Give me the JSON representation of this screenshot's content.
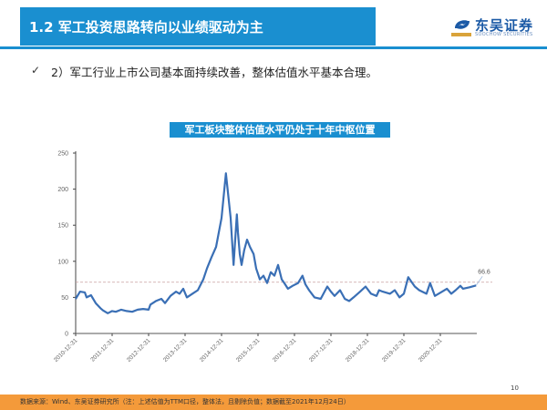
{
  "header": {
    "title": "1.2 军工投资思路转向以业绩驱动为主",
    "logo_cn": "东吴证券",
    "logo_en": "SOOCHOW SECURITIES"
  },
  "bullet": {
    "icon": "check-icon",
    "mark": "✓",
    "text": "2）军工行业上市公司基本面持续改善，整体估值水平基本合理。"
  },
  "chart_title": "军工板块整体估值水平仍处于十年中枢位置",
  "chart_data": {
    "type": "line",
    "title": "军工板块整体估值水平仍处于十年中枢位置",
    "xlabel": "",
    "ylabel": "",
    "ylim": [
      0,
      250
    ],
    "yticks": [
      0,
      50,
      100,
      150,
      200,
      250
    ],
    "xticks": [
      "2010-12-31",
      "2011-12-31",
      "2012-12-31",
      "2013-12-31",
      "2014-12-31",
      "2015-12-31",
      "2016-12-31",
      "2017-12-31",
      "2018-12-31",
      "2019-12-31",
      "2020-12-31"
    ],
    "grid": false,
    "legend": null,
    "reference_line": {
      "value": 71,
      "style": "dashed",
      "color": "#c9a0a0"
    },
    "end_label": "66.6",
    "series": [
      {
        "name": "军工板块整体估值(PE TTM)",
        "color": "#3a6fb5",
        "x": [
          0.0,
          0.12,
          0.25,
          0.3,
          0.42,
          0.55,
          0.68,
          0.75,
          0.88,
          1.0,
          1.1,
          1.25,
          1.4,
          1.55,
          1.7,
          1.85,
          2.0,
          2.05,
          2.2,
          2.35,
          2.45,
          2.6,
          2.75,
          2.85,
          2.95,
          3.05,
          3.2,
          3.35,
          3.5,
          3.6,
          3.72,
          3.85,
          4.0,
          4.12,
          4.25,
          4.33,
          4.42,
          4.45,
          4.5,
          4.55,
          4.62,
          4.7,
          4.78,
          4.88,
          4.95,
          5.05,
          5.15,
          5.25,
          5.35,
          5.45,
          5.55,
          5.65,
          5.72,
          5.82,
          5.95,
          6.1,
          6.22,
          6.3,
          6.4,
          6.55,
          6.72,
          6.9,
          7.0,
          7.1,
          7.25,
          7.38,
          7.5,
          7.62,
          7.8,
          7.95,
          8.1,
          8.25,
          8.32,
          8.42,
          8.62,
          8.75,
          8.88,
          9.0,
          9.12,
          9.3,
          9.42,
          9.62,
          9.72,
          9.85,
          10.05,
          10.18,
          10.3,
          10.42,
          10.55,
          10.62,
          10.8,
          10.98
        ],
        "values": [
          48,
          58,
          57,
          50,
          53,
          42,
          35,
          32,
          28,
          31,
          30,
          33,
          31,
          30,
          33,
          34,
          33,
          40,
          45,
          48,
          42,
          52,
          58,
          55,
          62,
          50,
          55,
          60,
          75,
          90,
          105,
          120,
          160,
          222,
          160,
          95,
          165,
          140,
          110,
          95,
          115,
          130,
          120,
          110,
          90,
          75,
          80,
          70,
          85,
          80,
          95,
          75,
          70,
          62,
          66,
          70,
          80,
          68,
          60,
          50,
          48,
          65,
          58,
          52,
          60,
          48,
          45,
          50,
          58,
          65,
          55,
          52,
          60,
          58,
          55,
          60,
          50,
          55,
          78,
          65,
          60,
          55,
          70,
          52,
          58,
          62,
          55,
          60,
          66,
          62,
          64,
          66.6
        ]
      }
    ]
  },
  "page_number": "10",
  "footer": {
    "source": "数据来源：Wind、东吴证券研究所（注：上述估值为TTM口径，整体法，且剔除负值；数据截至2021年12月24日）"
  },
  "colors": {
    "brand_blue": "#1a8fd0",
    "line": "#3a6fb5",
    "footer_orange": "#f49a3a",
    "reference": "#c9a0a0"
  }
}
